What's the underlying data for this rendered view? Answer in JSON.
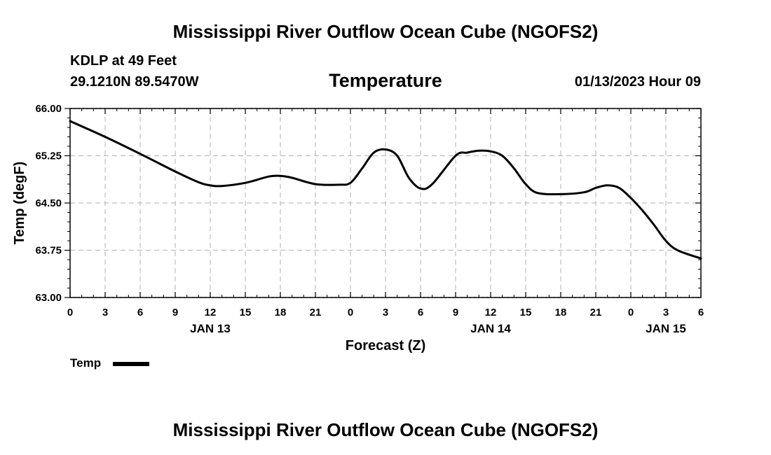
{
  "header": {
    "title": "Mississippi River Outflow Ocean Cube (NGOFS2)",
    "station": "KDLP at 49 Feet",
    "coords": "29.1210N  89.5470W",
    "variable": "Temperature",
    "valid_time": "01/13/2023 Hour 09"
  },
  "footer": {
    "title": "Mississippi River Outflow Ocean Cube (NGOFS2)"
  },
  "chart_data": {
    "type": "line",
    "title": "Temperature",
    "xlabel": "Forecast (Z)",
    "ylabel": "Temp (degF)",
    "ylim": [
      63.0,
      66.0
    ],
    "y_ticks": [
      "63.00",
      "63.75",
      "64.50",
      "65.25",
      "66.00"
    ],
    "xlim": [
      0,
      54
    ],
    "x_ticks": [
      0,
      3,
      6,
      9,
      12,
      15,
      18,
      21,
      24,
      27,
      30,
      33,
      36,
      39,
      42,
      45,
      48,
      51,
      54
    ],
    "x_tick_labels": [
      "0",
      "3",
      "6",
      "9",
      "12",
      "15",
      "18",
      "21",
      "0",
      "3",
      "6",
      "9",
      "12",
      "15",
      "18",
      "21",
      "0",
      "3",
      "6"
    ],
    "date_labels": [
      {
        "text": "JAN 13",
        "x": 12
      },
      {
        "text": "JAN 14",
        "x": 36
      },
      {
        "text": "JAN 15",
        "x": 51
      }
    ],
    "grid": true,
    "series": [
      {
        "name": "Temp",
        "x": [
          0,
          3,
          6,
          9,
          11,
          12,
          13,
          15,
          17,
          18,
          19,
          21,
          23,
          24,
          25,
          26,
          27,
          28,
          29,
          30,
          31,
          33,
          34,
          35,
          36,
          37,
          38,
          39,
          40,
          42,
          44,
          45,
          46,
          47,
          48,
          49,
          50,
          51,
          52,
          54
        ],
        "values": [
          65.8,
          65.55,
          65.28,
          65.0,
          64.83,
          64.78,
          64.77,
          64.82,
          64.92,
          64.93,
          64.9,
          64.8,
          64.79,
          64.82,
          65.05,
          65.3,
          65.35,
          65.25,
          64.9,
          64.73,
          64.8,
          65.25,
          65.3,
          65.33,
          65.32,
          65.25,
          65.05,
          64.8,
          64.66,
          64.64,
          64.67,
          64.74,
          64.78,
          64.74,
          64.58,
          64.38,
          64.15,
          63.9,
          63.75,
          63.62
        ]
      }
    ],
    "legend": [
      {
        "label": "Temp"
      }
    ],
    "legend_position": "bottom-left"
  }
}
